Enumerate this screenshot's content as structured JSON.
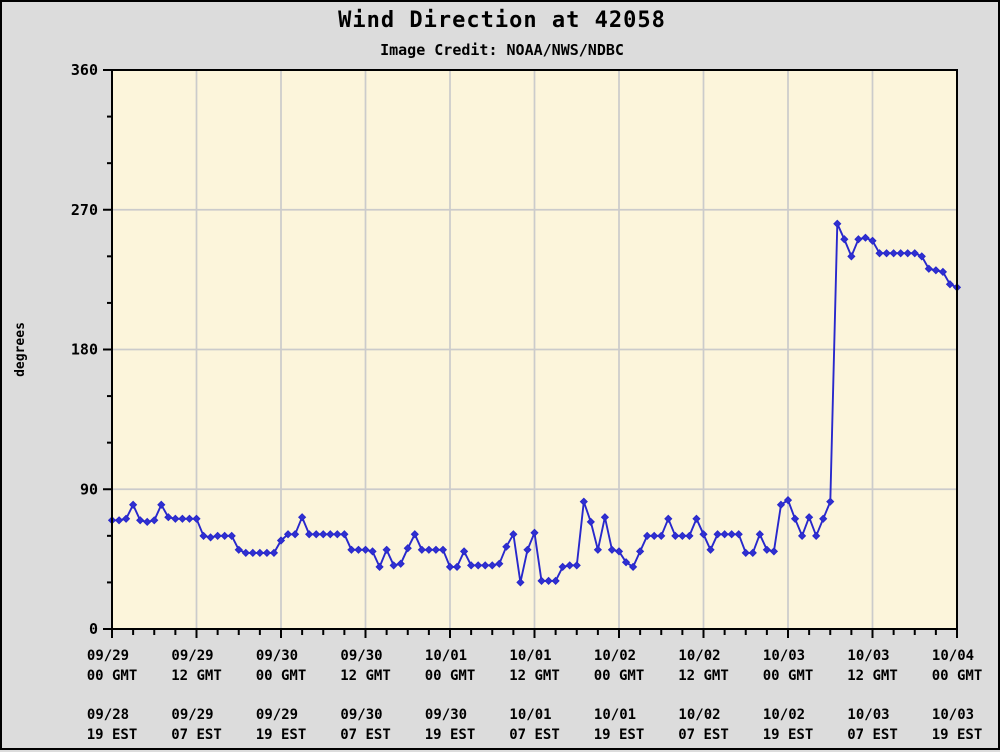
{
  "header": {
    "title": "Wind Direction at 42058",
    "subtitle": "Image Credit: NOAA/NWS/NDBC"
  },
  "chart_data": {
    "type": "line",
    "title": "Wind Direction at 42058",
    "subtitle": "Image Credit: NOAA/NWS/NDBC",
    "xlabel": "",
    "ylabel": "degrees",
    "ylim": [
      0,
      360
    ],
    "y_major_ticks": [
      0,
      90,
      180,
      270,
      360
    ],
    "y_minor_step": 30,
    "xlim_hours": [
      0,
      120
    ],
    "x_major_step_hours": 12,
    "x_minor_step_hours": 3,
    "grid": true,
    "legend": "none",
    "x_axis_labels_gmt": [
      [
        "09/29",
        "00 GMT"
      ],
      [
        "09/29",
        "12 GMT"
      ],
      [
        "09/30",
        "00 GMT"
      ],
      [
        "09/30",
        "12 GMT"
      ],
      [
        "10/01",
        "00 GMT"
      ],
      [
        "10/01",
        "12 GMT"
      ],
      [
        "10/02",
        "00 GMT"
      ],
      [
        "10/02",
        "12 GMT"
      ],
      [
        "10/03",
        "00 GMT"
      ],
      [
        "10/03",
        "12 GMT"
      ],
      [
        "10/04",
        "00 GMT"
      ]
    ],
    "x_axis_labels_est": [
      [
        "09/28",
        "19 EST"
      ],
      [
        "09/29",
        "07 EST"
      ],
      [
        "09/29",
        "19 EST"
      ],
      [
        "09/30",
        "07 EST"
      ],
      [
        "09/30",
        "19 EST"
      ],
      [
        "10/01",
        "07 EST"
      ],
      [
        "10/01",
        "19 EST"
      ],
      [
        "10/02",
        "07 EST"
      ],
      [
        "10/02",
        "19 EST"
      ],
      [
        "10/03",
        "07 EST"
      ],
      [
        "10/03",
        "19 EST"
      ]
    ],
    "series": [
      {
        "name": "wind-direction-degrees",
        "x_start_hour": 0,
        "x_step_hours": 1,
        "values": [
          70,
          70,
          71,
          80,
          70,
          69,
          70,
          80,
          72,
          71,
          71,
          71,
          71,
          60,
          59,
          60,
          60,
          60,
          51,
          49,
          49,
          49,
          49,
          49,
          57,
          61,
          61,
          72,
          61,
          61,
          61,
          61,
          61,
          61,
          51,
          51,
          51,
          50,
          40,
          51,
          41,
          42,
          52,
          61,
          51,
          51,
          51,
          51,
          40,
          40,
          50,
          41,
          41,
          41,
          41,
          42,
          53,
          61,
          30,
          51,
          62,
          31,
          31,
          31,
          40,
          41,
          41,
          82,
          69,
          51,
          72,
          51,
          50,
          43,
          40,
          50,
          60,
          60,
          60,
          71,
          60,
          60,
          60,
          71,
          61,
          51,
          61,
          61,
          61,
          61,
          49,
          49,
          61,
          51,
          50,
          80,
          83,
          71,
          60,
          72,
          60,
          71,
          82,
          261,
          251,
          240,
          251,
          252,
          250,
          242,
          242,
          242,
          242,
          242,
          242,
          240,
          232,
          231,
          230,
          222,
          220
        ]
      }
    ],
    "colors": {
      "line": "#2828CC",
      "marker": "#3030D0",
      "plot_bg": "#FCF5DB",
      "grid": "#CBCBCB",
      "page_bg": "#DCDCDC",
      "text": "#000000",
      "frame": "#000000"
    }
  }
}
